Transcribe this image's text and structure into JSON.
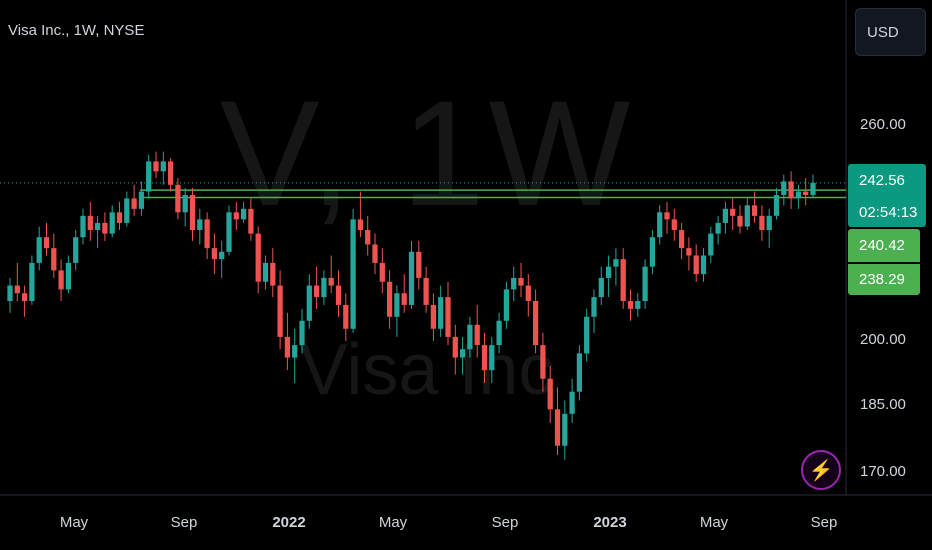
{
  "header": {
    "title": "Visa Inc., 1W, NYSE",
    "currency_label": "USD"
  },
  "watermark": {
    "symbol": "V, 1W",
    "name": "Visa Inc"
  },
  "flash_icon": {
    "glyph": "⚡",
    "color": "#9c27b0"
  },
  "colors": {
    "up": "#26a69a",
    "down": "#ef5350",
    "hline": "#4caf50",
    "axis": "#d1d4dc"
  },
  "price_labels": {
    "current": "242.56",
    "countdown": "02:54:13",
    "line1": "240.42",
    "line2": "238.29"
  },
  "chart_data": {
    "type": "candlestick",
    "title": "Visa Inc., 1W, NYSE",
    "interval": "1W",
    "currency": "USD",
    "y_ticks": [
      "260.00",
      "242.56",
      "240.42",
      "238.29",
      "200.00",
      "185.00",
      "170.00"
    ],
    "y_tick_values": [
      260,
      200,
      185,
      170
    ],
    "x_ticks": [
      "May",
      "Sep",
      "2022",
      "May",
      "Sep",
      "2023",
      "May",
      "Sep"
    ],
    "horizontal_lines": [
      240.42,
      238.29
    ],
    "last_price": 242.56,
    "price_scale": "log",
    "candles": [
      [
        210,
        216,
        207,
        214
      ],
      [
        214,
        220,
        210,
        212
      ],
      [
        212,
        214,
        206,
        210
      ],
      [
        210,
        222,
        209,
        220
      ],
      [
        220,
        230,
        218,
        227
      ],
      [
        227,
        231,
        222,
        224
      ],
      [
        224,
        228,
        216,
        218
      ],
      [
        218,
        221,
        210,
        213
      ],
      [
        213,
        222,
        212,
        220
      ],
      [
        220,
        229,
        218,
        227
      ],
      [
        227,
        235,
        225,
        233
      ],
      [
        233,
        237,
        226,
        229
      ],
      [
        229,
        233,
        224,
        231
      ],
      [
        231,
        234,
        226,
        228
      ],
      [
        228,
        236,
        227,
        234
      ],
      [
        234,
        237,
        229,
        231
      ],
      [
        231,
        240,
        230,
        238
      ],
      [
        238,
        242,
        233,
        235
      ],
      [
        235,
        243,
        233,
        240
      ],
      [
        240,
        251,
        238,
        249
      ],
      [
        249,
        252,
        244,
        246
      ],
      [
        246,
        252,
        242,
        249
      ],
      [
        249,
        250,
        240,
        242
      ],
      [
        242,
        244,
        232,
        234
      ],
      [
        234,
        241,
        230,
        239
      ],
      [
        239,
        241,
        226,
        229
      ],
      [
        229,
        235,
        225,
        232
      ],
      [
        232,
        234,
        221,
        224
      ],
      [
        224,
        228,
        217,
        221
      ],
      [
        221,
        226,
        216,
        223
      ],
      [
        223,
        236,
        222,
        234
      ],
      [
        234,
        237,
        229,
        232
      ],
      [
        232,
        237,
        231,
        235
      ],
      [
        235,
        238,
        226,
        228
      ],
      [
        228,
        230,
        212,
        215
      ],
      [
        215,
        222,
        213,
        220
      ],
      [
        220,
        224,
        211,
        214
      ],
      [
        214,
        218,
        198,
        201
      ],
      [
        201,
        207,
        193,
        196
      ],
      [
        196,
        203,
        190,
        199
      ],
      [
        199,
        208,
        197,
        205
      ],
      [
        205,
        217,
        203,
        214
      ],
      [
        214,
        219,
        208,
        211
      ],
      [
        211,
        218,
        209,
        216
      ],
      [
        216,
        222,
        212,
        214
      ],
      [
        214,
        218,
        206,
        209
      ],
      [
        209,
        212,
        200,
        203
      ],
      [
        203,
        235,
        202,
        232
      ],
      [
        232,
        240,
        227,
        229
      ],
      [
        229,
        233,
        222,
        225
      ],
      [
        225,
        228,
        217,
        220
      ],
      [
        220,
        224,
        212,
        215
      ],
      [
        215,
        218,
        203,
        206
      ],
      [
        206,
        214,
        201,
        212
      ],
      [
        212,
        217,
        207,
        209
      ],
      [
        209,
        226,
        208,
        223
      ],
      [
        223,
        226,
        213,
        216
      ],
      [
        216,
        219,
        207,
        209
      ],
      [
        209,
        212,
        200,
        203
      ],
      [
        203,
        214,
        201,
        211
      ],
      [
        211,
        215,
        199,
        201
      ],
      [
        201,
        204,
        192,
        196
      ],
      [
        196,
        201,
        192,
        198
      ],
      [
        198,
        206,
        196,
        204
      ],
      [
        204,
        209,
        196,
        199
      ],
      [
        199,
        202,
        190,
        193
      ],
      [
        193,
        201,
        190,
        199
      ],
      [
        199,
        207,
        197,
        205
      ],
      [
        205,
        215,
        203,
        213
      ],
      [
        213,
        219,
        210,
        216
      ],
      [
        216,
        220,
        211,
        214
      ],
      [
        214,
        217,
        206,
        210
      ],
      [
        210,
        213,
        197,
        199
      ],
      [
        199,
        202,
        188,
        191
      ],
      [
        191,
        194,
        181,
        184
      ],
      [
        184,
        189,
        174,
        176
      ],
      [
        176,
        186,
        173,
        183
      ],
      [
        183,
        191,
        181,
        188
      ],
      [
        188,
        199,
        186,
        197
      ],
      [
        197,
        208,
        195,
        206
      ],
      [
        206,
        213,
        202,
        211
      ],
      [
        211,
        219,
        209,
        216
      ],
      [
        216,
        222,
        211,
        219
      ],
      [
        219,
        224,
        214,
        221
      ],
      [
        221,
        224,
        208,
        210
      ],
      [
        210,
        213,
        205,
        208
      ],
      [
        208,
        212,
        206,
        210
      ],
      [
        210,
        221,
        208,
        219
      ],
      [
        219,
        229,
        217,
        227
      ],
      [
        227,
        236,
        225,
        234
      ],
      [
        234,
        237,
        228,
        232
      ],
      [
        232,
        235,
        226,
        229
      ],
      [
        229,
        231,
        221,
        224
      ],
      [
        224,
        227,
        218,
        222
      ],
      [
        222,
        225,
        215,
        217
      ],
      [
        217,
        224,
        215,
        222
      ],
      [
        222,
        230,
        220,
        228
      ],
      [
        228,
        233,
        225,
        231
      ],
      [
        231,
        237,
        228,
        235
      ],
      [
        235,
        238,
        229,
        233
      ],
      [
        233,
        236,
        228,
        230
      ],
      [
        230,
        238,
        229,
        236
      ],
      [
        236,
        240,
        231,
        233
      ],
      [
        233,
        236,
        226,
        229
      ],
      [
        229,
        235,
        224,
        233
      ],
      [
        233,
        241,
        232,
        239
      ],
      [
        239,
        245,
        236,
        243
      ],
      [
        243,
        246,
        235,
        238
      ],
      [
        238,
        242,
        235,
        240
      ],
      [
        240,
        244,
        236,
        239
      ],
      [
        239,
        245,
        238,
        242.56
      ]
    ]
  }
}
